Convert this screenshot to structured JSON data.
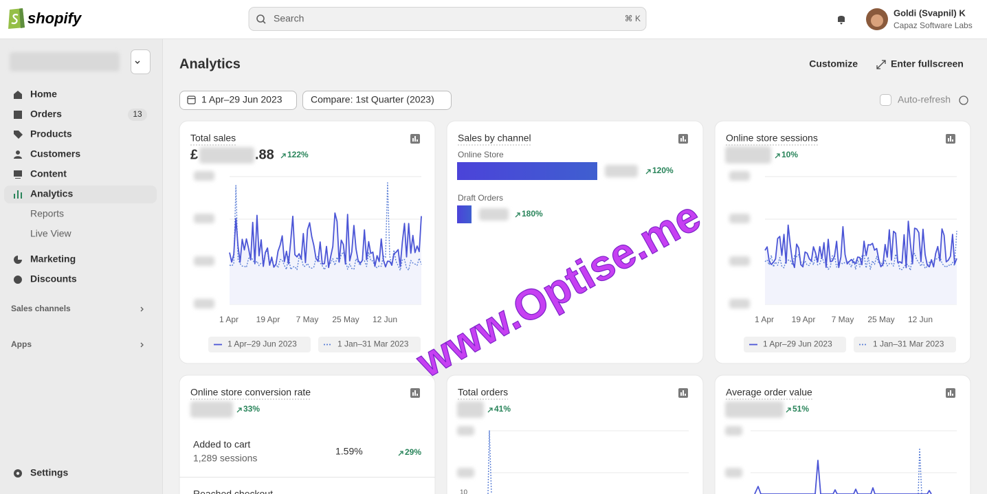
{
  "header": {
    "brand": "shopify",
    "search": {
      "placeholder": "Search",
      "shortcut": "⌘ K"
    },
    "user": {
      "name": "Goldi (Svapnil) K",
      "company": "Capaz Software Labs"
    }
  },
  "sidebar": {
    "nav": [
      {
        "label": "Home"
      },
      {
        "label": "Orders",
        "badge": 13
      },
      {
        "label": "Products"
      },
      {
        "label": "Customers"
      },
      {
        "label": "Content"
      },
      {
        "label": "Analytics",
        "children": [
          "Reports",
          "Live View"
        ]
      },
      {
        "label": "Marketing"
      },
      {
        "label": "Discounts"
      }
    ],
    "sections": [
      "Sales channels",
      "Apps"
    ],
    "settings": "Settings"
  },
  "page": {
    "title": "Analytics",
    "actions": [
      "Customize",
      "Enter fullscreen"
    ],
    "date_range": "1 Apr–29 Jun 2023",
    "compare": "Compare: 1st Quarter (2023)",
    "auto_refresh": "Auto-refresh"
  },
  "cards": [
    {
      "title": "Total sales",
      "value_prefix": "£",
      "value_suffix": ".88",
      "change": "122%",
      "x_labels": [
        "1 Apr",
        "19 Apr",
        "7 May",
        "25 May",
        "12 Jun"
      ],
      "legend": [
        "1 Apr–29 Jun 2023",
        "1 Jan–31 Mar 2023"
      ]
    },
    {
      "title": "Sales by channel",
      "channels": [
        {
          "name": "Online Store",
          "change": "120%"
        },
        {
          "name": "Draft Orders",
          "change": "180%"
        }
      ]
    },
    {
      "title": "Online store sessions",
      "change": "10%",
      "x_labels": [
        "1 Apr",
        "19 Apr",
        "7 May",
        "25 May",
        "12 Jun"
      ],
      "legend": [
        "1 Apr–29 Jun 2023",
        "1 Jan–31 Mar 2023"
      ]
    },
    {
      "title": "Online store conversion rate",
      "change": "33%",
      "steps": [
        {
          "label": "Added to cart",
          "sessions": "1,289 sessions",
          "rate": "1.59%",
          "change": "29%"
        },
        {
          "label": "Reached checkout"
        }
      ]
    },
    {
      "title": "Total orders",
      "change": "41%",
      "y_labels": [
        "10"
      ]
    },
    {
      "title": "Average order value",
      "change": "51%"
    }
  ],
  "watermark": "www.Optise.me"
}
